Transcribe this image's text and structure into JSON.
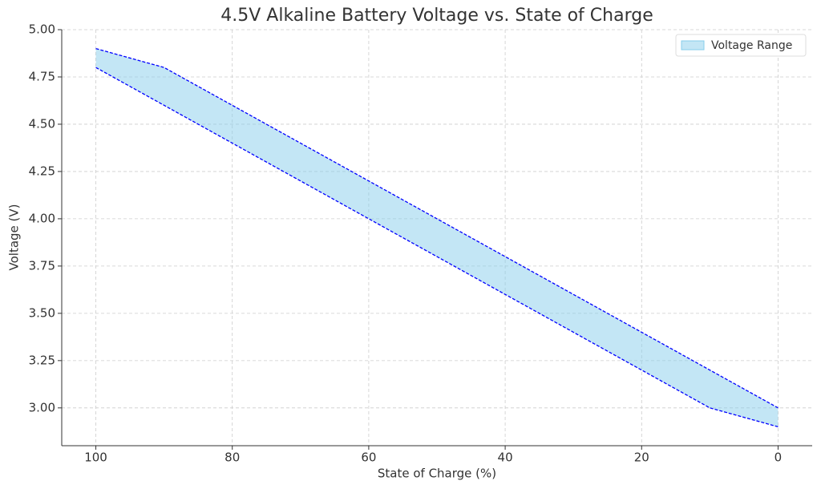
{
  "chart_data": {
    "type": "range_area",
    "title": "4.5V Alkaline Battery Voltage vs. State of Charge",
    "x_label": "State of Charge (%)",
    "y_label": "Voltage (V)",
    "x": [
      100,
      90,
      80,
      70,
      60,
      50,
      40,
      30,
      20,
      10,
      0
    ],
    "series": [
      {
        "name": "Voltage Range",
        "color": "#87ceeb",
        "line_color": "#0000ff",
        "lower": [
          4.8,
          4.6,
          4.4,
          4.2,
          4.0,
          3.8,
          3.6,
          3.4,
          3.2,
          3.0,
          2.9
        ],
        "upper": [
          4.9,
          4.8,
          4.6,
          4.4,
          4.2,
          4.0,
          3.8,
          3.6,
          3.4,
          3.2,
          3.0
        ]
      }
    ],
    "xlim": [
      105,
      -5
    ],
    "xticks": [
      100,
      80,
      60,
      40,
      20,
      0
    ],
    "ylim": [
      2.8,
      5.0
    ],
    "yticks": [
      {
        "value": 3.0,
        "label": "3.00"
      },
      {
        "value": 3.25,
        "label": "3.25"
      },
      {
        "value": 3.5,
        "label": "3.50"
      },
      {
        "value": 3.75,
        "label": "3.75"
      },
      {
        "value": 4.0,
        "label": "4.00"
      },
      {
        "value": 4.25,
        "label": "4.25"
      },
      {
        "value": 4.5,
        "label": "4.50"
      },
      {
        "value": 4.75,
        "label": "4.75"
      },
      {
        "value": 5.0,
        "label": "5.00"
      }
    ],
    "grid": true,
    "legend": "upper right"
  }
}
